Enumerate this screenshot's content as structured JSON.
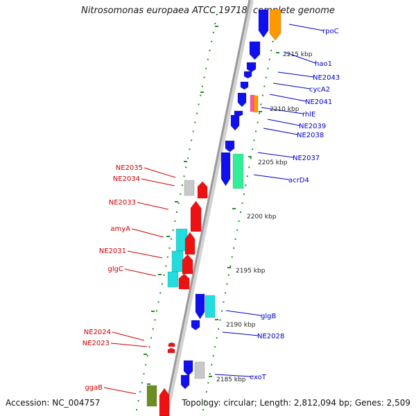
{
  "title": "Nitrosomonas europaea ATCC 19718, complete genome",
  "footer": {
    "accession": "Accession: NC_004757",
    "topology": "Topology: circular; Length: 2,812,094 bp; Genes: 2,509"
  },
  "colors": {
    "backbone": "#9a9a9a",
    "forward_label": "#0000cc",
    "reverse_label": "#cc0000",
    "tick": "#228b22",
    "blue": "#1010ee",
    "orange": "#ff9900",
    "cyan": "#22dddd",
    "green_cyan": "#33ee99",
    "red": "#ee1111",
    "gray": "#c8c8c8",
    "olive": "#6b8e23",
    "pink": "#ff55aa"
  },
  "scale_labels": [
    "2215 kbp",
    "2210 kbp",
    "2205 kbp",
    "2200 kbp",
    "2195 kbp",
    "2190 kbp",
    "2185 kbp"
  ],
  "forward_genes": [
    "rpoC",
    "hao1",
    "NE2043",
    "cycA2",
    "NE2041",
    "rhlE",
    "NE2039",
    "NE2038",
    "NE2037",
    "acrD4",
    "glgB",
    "NE2028",
    "exoT"
  ],
  "reverse_genes": [
    "NE2035",
    "NE2034",
    "NE2033",
    "amyA",
    "NE2031",
    "glgC",
    "NE2024",
    "NE2023",
    "ggaB"
  ]
}
